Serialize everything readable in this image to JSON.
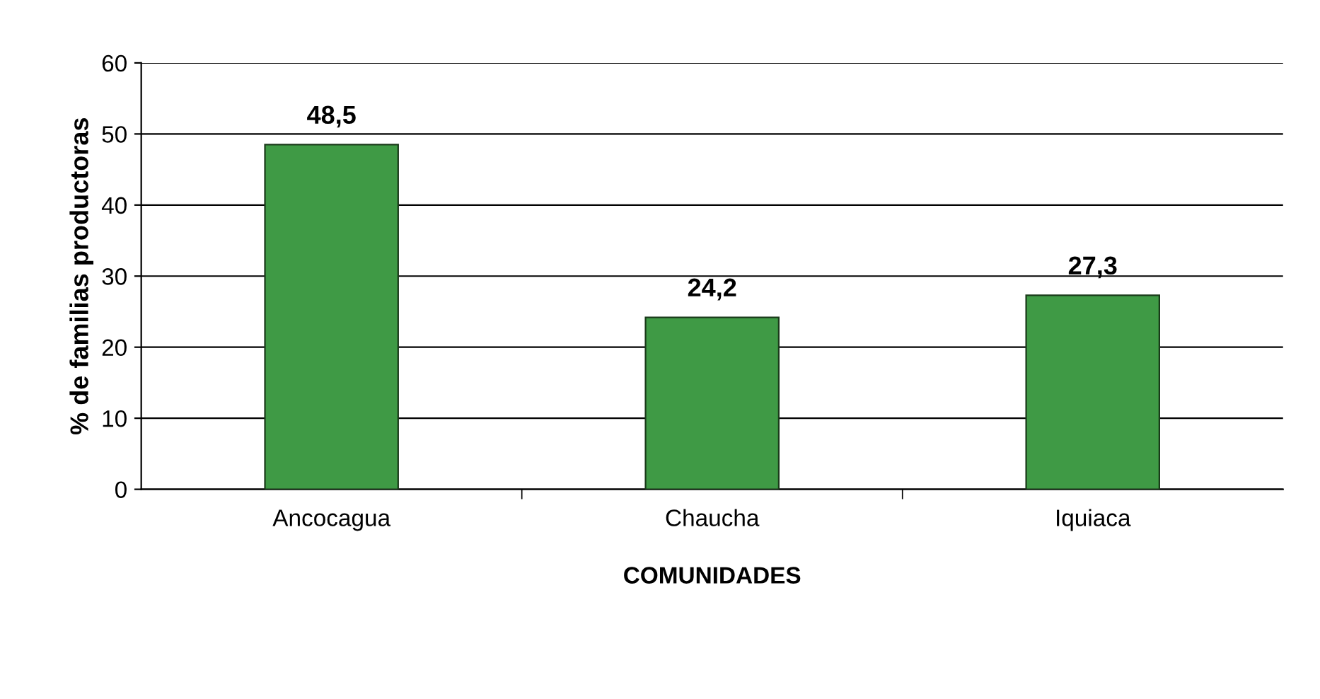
{
  "chart_data": {
    "type": "bar",
    "categories": [
      "Ancocagua",
      "Chaucha",
      "Iquiaca"
    ],
    "values": [
      48.5,
      24.2,
      27.3
    ],
    "value_labels": [
      "48,5",
      "24,2",
      "27,3"
    ],
    "color": "#3f9a45",
    "xlabel": "COMUNIDADES",
    "ylabel": "% de familias productoras",
    "ylim": [
      0,
      60
    ],
    "yticks": [
      0,
      10,
      20,
      30,
      40,
      50,
      60
    ],
    "grid": "y"
  }
}
